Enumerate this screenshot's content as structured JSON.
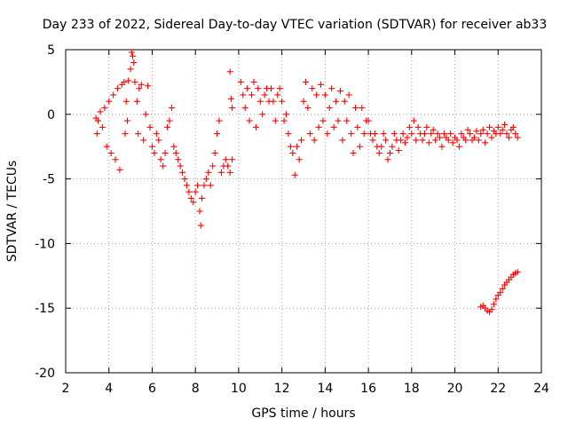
{
  "chart_data": {
    "type": "scatter",
    "title": "Day 233 of 2022, Sidereal Day-to-day VTEC variation (SDTVAR) for receiver ab33",
    "xlabel": "GPS time / hours",
    "ylabel": "SDTVAR / TECUs",
    "xlim": [
      2,
      24
    ],
    "ylim": [
      -20,
      5
    ],
    "xticks": [
      "2",
      "4",
      "6",
      "8",
      "10",
      "12",
      "14",
      "16",
      "18",
      "20",
      "22",
      "24"
    ],
    "yticks": [
      "5",
      "0",
      "-5",
      "-10",
      "-15",
      "-20"
    ],
    "grid": true,
    "marker": "plus",
    "color": "#ff0000",
    "series": [
      {
        "name": "SDTVAR",
        "points": [
          [
            3.4,
            -0.3
          ],
          [
            3.45,
            -1.5
          ],
          [
            3.5,
            -0.5
          ],
          [
            3.6,
            0.2
          ],
          [
            3.7,
            -1.0
          ],
          [
            3.8,
            0.5
          ],
          [
            3.9,
            -2.5
          ],
          [
            4.0,
            1.0
          ],
          [
            4.1,
            -3.0
          ],
          [
            4.2,
            1.5
          ],
          [
            4.3,
            -3.5
          ],
          [
            4.4,
            2.0
          ],
          [
            4.5,
            -4.3
          ],
          [
            4.6,
            2.3
          ],
          [
            4.7,
            2.5
          ],
          [
            4.75,
            -1.5
          ],
          [
            4.8,
            1.0
          ],
          [
            4.85,
            -0.5
          ],
          [
            4.9,
            2.6
          ],
          [
            5.0,
            3.5
          ],
          [
            5.05,
            4.8
          ],
          [
            5.1,
            4.5
          ],
          [
            5.15,
            4.0
          ],
          [
            5.2,
            2.5
          ],
          [
            5.3,
            1.0
          ],
          [
            5.35,
            -1.5
          ],
          [
            5.4,
            2.0
          ],
          [
            5.5,
            2.3
          ],
          [
            5.6,
            -2.0
          ],
          [
            5.7,
            0.0
          ],
          [
            5.8,
            2.2
          ],
          [
            5.9,
            -1.0
          ],
          [
            6.0,
            -2.5
          ],
          [
            6.1,
            -3.0
          ],
          [
            6.2,
            -1.5
          ],
          [
            6.3,
            -2.0
          ],
          [
            6.4,
            -3.5
          ],
          [
            6.5,
            -4.0
          ],
          [
            6.6,
            -3.0
          ],
          [
            6.7,
            -1.0
          ],
          [
            6.8,
            -0.5
          ],
          [
            6.9,
            0.5
          ],
          [
            7.0,
            -2.5
          ],
          [
            7.1,
            -3.0
          ],
          [
            7.2,
            -3.5
          ],
          [
            7.3,
            -4.0
          ],
          [
            7.4,
            -4.5
          ],
          [
            7.5,
            -5.0
          ],
          [
            7.6,
            -5.5
          ],
          [
            7.7,
            -6.0
          ],
          [
            7.8,
            -6.5
          ],
          [
            7.9,
            -6.8
          ],
          [
            8.0,
            -6.0
          ],
          [
            8.1,
            -5.5
          ],
          [
            8.2,
            -7.5
          ],
          [
            8.25,
            -8.6
          ],
          [
            8.3,
            -6.5
          ],
          [
            8.4,
            -5.5
          ],
          [
            8.5,
            -5.0
          ],
          [
            8.6,
            -4.5
          ],
          [
            8.7,
            -5.5
          ],
          [
            8.8,
            -4.0
          ],
          [
            8.9,
            -3.0
          ],
          [
            9.0,
            -1.5
          ],
          [
            9.1,
            -0.5
          ],
          [
            9.2,
            -4.5
          ],
          [
            9.3,
            -4.0
          ],
          [
            9.4,
            -3.5
          ],
          [
            9.5,
            -4.0
          ],
          [
            9.6,
            -4.5
          ],
          [
            9.7,
            -3.5
          ],
          [
            9.6,
            3.3
          ],
          [
            9.65,
            1.2
          ],
          [
            9.7,
            0.5
          ],
          [
            10.1,
            2.5
          ],
          [
            10.2,
            1.5
          ],
          [
            10.3,
            0.5
          ],
          [
            10.4,
            2.0
          ],
          [
            10.5,
            -0.5
          ],
          [
            10.6,
            1.5
          ],
          [
            10.7,
            2.5
          ],
          [
            10.8,
            -1.0
          ],
          [
            10.9,
            2.0
          ],
          [
            11.0,
            1.0
          ],
          [
            11.1,
            0.0
          ],
          [
            11.2,
            1.5
          ],
          [
            11.3,
            2.0
          ],
          [
            11.4,
            1.0
          ],
          [
            11.5,
            2.0
          ],
          [
            11.6,
            1.0
          ],
          [
            11.7,
            -0.5
          ],
          [
            11.8,
            1.5
          ],
          [
            11.9,
            2.0
          ],
          [
            12.0,
            1.0
          ],
          [
            12.1,
            -0.5
          ],
          [
            12.2,
            0.0
          ],
          [
            12.3,
            -1.5
          ],
          [
            12.4,
            -2.5
          ],
          [
            12.5,
            -3.0
          ],
          [
            12.6,
            -4.7
          ],
          [
            12.7,
            -2.5
          ],
          [
            12.8,
            -3.5
          ],
          [
            12.9,
            -2.0
          ],
          [
            13.0,
            1.0
          ],
          [
            13.1,
            2.5
          ],
          [
            13.2,
            0.5
          ],
          [
            13.3,
            -1.5
          ],
          [
            13.4,
            2.0
          ],
          [
            13.5,
            -2.0
          ],
          [
            13.6,
            1.5
          ],
          [
            13.7,
            -1.0
          ],
          [
            13.8,
            2.3
          ],
          [
            13.9,
            -0.5
          ],
          [
            14.0,
            1.5
          ],
          [
            14.1,
            -1.5
          ],
          [
            14.2,
            0.5
          ],
          [
            14.3,
            2.0
          ],
          [
            14.4,
            -1.0
          ],
          [
            14.5,
            1.0
          ],
          [
            14.6,
            -0.5
          ],
          [
            14.7,
            1.8
          ],
          [
            14.8,
            -2.0
          ],
          [
            14.9,
            1.0
          ],
          [
            15.0,
            -0.5
          ],
          [
            15.1,
            1.5
          ],
          [
            15.2,
            -1.5
          ],
          [
            15.3,
            -3.0
          ],
          [
            15.4,
            0.5
          ],
          [
            15.5,
            -1.0
          ],
          [
            15.6,
            -2.5
          ],
          [
            15.7,
            0.5
          ],
          [
            15.8,
            -1.5
          ],
          [
            15.9,
            -0.5
          ],
          [
            16.0,
            -0.5
          ],
          [
            16.1,
            -1.5
          ],
          [
            16.2,
            -2.0
          ],
          [
            16.3,
            -1.5
          ],
          [
            16.4,
            -2.5
          ],
          [
            16.5,
            -3.0
          ],
          [
            16.6,
            -2.5
          ],
          [
            16.7,
            -1.5
          ],
          [
            16.8,
            -2.0
          ],
          [
            16.9,
            -3.5
          ],
          [
            17.0,
            -3.0
          ],
          [
            17.1,
            -2.5
          ],
          [
            17.2,
            -1.5
          ],
          [
            17.3,
            -2.0
          ],
          [
            17.4,
            -2.8
          ],
          [
            17.5,
            -2.0
          ],
          [
            17.6,
            -1.5
          ],
          [
            17.7,
            -2.2
          ],
          [
            17.8,
            -1.8
          ],
          [
            17.9,
            -1.0
          ],
          [
            18.0,
            -1.5
          ],
          [
            18.1,
            -0.5
          ],
          [
            18.2,
            -2.0
          ],
          [
            18.3,
            -1.0
          ],
          [
            18.4,
            -1.5
          ],
          [
            18.5,
            -2.0
          ],
          [
            18.6,
            -1.5
          ],
          [
            18.7,
            -1.0
          ],
          [
            18.8,
            -2.2
          ],
          [
            18.9,
            -1.5
          ],
          [
            19.0,
            -1.2
          ],
          [
            19.1,
            -2.0
          ],
          [
            19.2,
            -1.5
          ],
          [
            19.3,
            -1.8
          ],
          [
            19.4,
            -2.5
          ],
          [
            19.5,
            -1.5
          ],
          [
            19.6,
            -1.8
          ],
          [
            19.7,
            -2.0
          ],
          [
            19.8,
            -1.5
          ],
          [
            19.9,
            -2.2
          ],
          [
            20.0,
            -1.8
          ],
          [
            20.1,
            -2.0
          ],
          [
            20.2,
            -2.5
          ],
          [
            20.3,
            -1.5
          ],
          [
            20.4,
            -1.8
          ],
          [
            20.5,
            -2.0
          ],
          [
            20.6,
            -1.2
          ],
          [
            20.7,
            -1.5
          ],
          [
            20.8,
            -2.0
          ],
          [
            20.9,
            -1.8
          ],
          [
            21.0,
            -1.3
          ],
          [
            21.1,
            -2.0
          ],
          [
            21.2,
            -1.5
          ],
          [
            21.3,
            -1.2
          ],
          [
            21.4,
            -2.2
          ],
          [
            21.5,
            -1.5
          ],
          [
            21.6,
            -1.0
          ],
          [
            21.7,
            -1.8
          ],
          [
            21.8,
            -1.3
          ],
          [
            21.9,
            -1.5
          ],
          [
            22.0,
            -1.0
          ],
          [
            22.1,
            -1.5
          ],
          [
            22.2,
            -1.2
          ],
          [
            22.3,
            -0.8
          ],
          [
            22.4,
            -1.5
          ],
          [
            22.5,
            -1.8
          ],
          [
            22.6,
            -1.2
          ],
          [
            22.7,
            -1.0
          ],
          [
            22.8,
            -1.5
          ],
          [
            22.9,
            -1.8
          ],
          [
            21.2,
            -14.9
          ],
          [
            21.3,
            -14.8
          ],
          [
            21.4,
            -15.0
          ],
          [
            21.5,
            -15.2
          ],
          [
            21.6,
            -15.3
          ],
          [
            21.7,
            -15.1
          ],
          [
            21.8,
            -14.7
          ],
          [
            21.9,
            -14.3
          ],
          [
            22.0,
            -14.0
          ],
          [
            22.1,
            -13.8
          ],
          [
            22.2,
            -13.5
          ],
          [
            22.3,
            -13.2
          ],
          [
            22.4,
            -13.0
          ],
          [
            22.5,
            -12.8
          ],
          [
            22.6,
            -12.6
          ],
          [
            22.7,
            -12.4
          ],
          [
            22.8,
            -12.3
          ],
          [
            22.9,
            -12.2
          ]
        ]
      }
    ]
  }
}
